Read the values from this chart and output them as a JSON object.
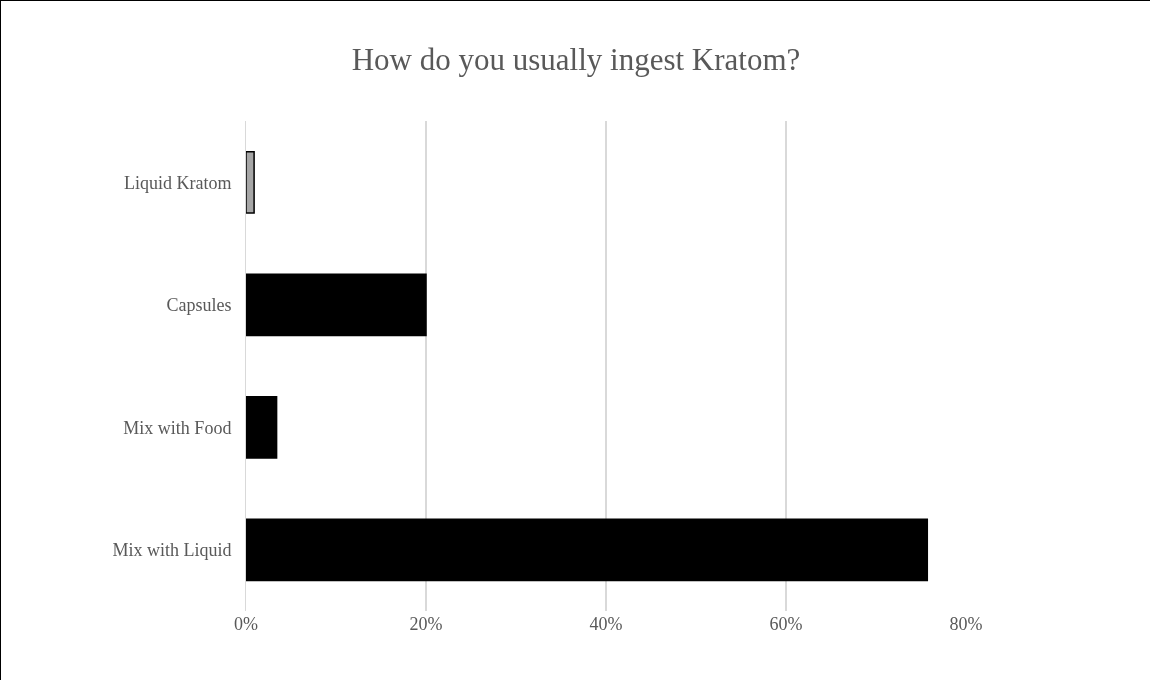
{
  "chart_data": {
    "type": "bar",
    "orientation": "horizontal",
    "title": "How do you usually ingest Kratom?",
    "categories": [
      "Liquid Kratom",
      "Capsules",
      "Mix with Food",
      "Mix with Liquid"
    ],
    "values": [
      0.9,
      20,
      3.4,
      75.7
    ],
    "colors": [
      "#a6a6a6",
      "#000000",
      "#000000",
      "#000000"
    ],
    "xlim": [
      0,
      80
    ],
    "xticks": [
      {
        "value": 0,
        "label": "0%"
      },
      {
        "value": 20,
        "label": "20%"
      },
      {
        "value": 40,
        "label": "40%"
      },
      {
        "value": 60,
        "label": "60%"
      },
      {
        "value": 80,
        "label": "80%"
      }
    ],
    "grid": "x",
    "legend": false
  }
}
